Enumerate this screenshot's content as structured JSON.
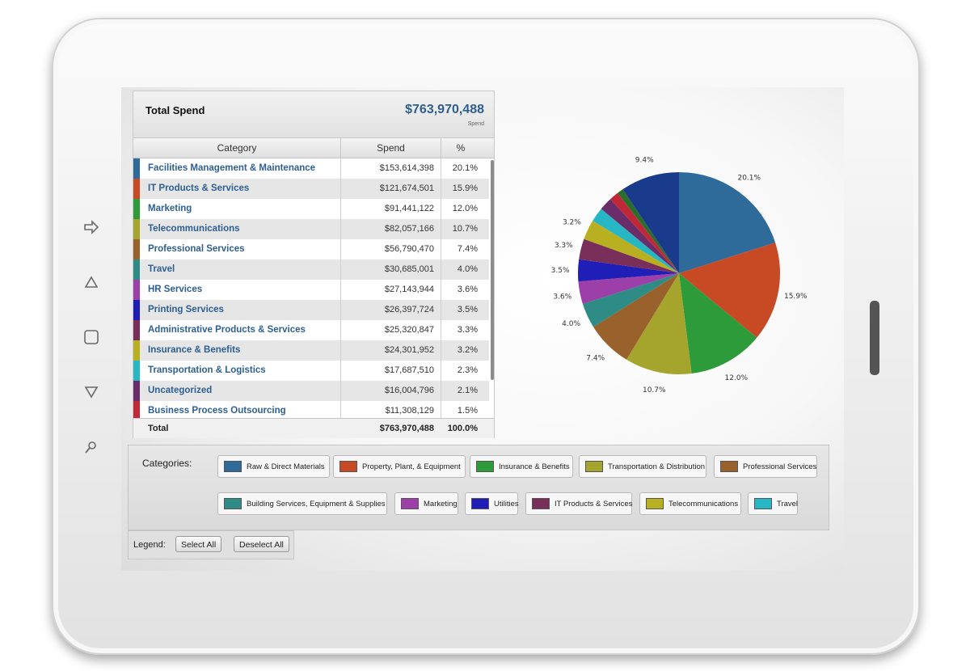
{
  "total_spend": {
    "title": "Total Spend",
    "value": "$763,970,488",
    "sub": "Spend"
  },
  "table": {
    "headers": [
      "Category",
      "Spend",
      "%"
    ],
    "rows": [
      {
        "category": "Facilities Management & Maintenance",
        "spend": "$153,614,398",
        "pct": "20.1%",
        "color": "#2e6b9b"
      },
      {
        "category": "IT Products & Services",
        "spend": "$121,674,501",
        "pct": "15.9%",
        "color": "#c84a24"
      },
      {
        "category": "Marketing",
        "spend": "$91,441,122",
        "pct": "12.0%",
        "color": "#2e9b3a"
      },
      {
        "category": "Telecommunications",
        "spend": "$82,057,166",
        "pct": "10.7%",
        "color": "#a5a52e"
      },
      {
        "category": "Professional Services",
        "spend": "$56,790,470",
        "pct": "7.4%",
        "color": "#99612c"
      },
      {
        "category": "Travel",
        "spend": "$30,685,001",
        "pct": "4.0%",
        "color": "#2e8b86"
      },
      {
        "category": "HR Services",
        "spend": "$27,143,944",
        "pct": "3.6%",
        "color": "#9c3fa8"
      },
      {
        "category": "Printing Services",
        "spend": "$26,397,724",
        "pct": "3.5%",
        "color": "#1f1fb8"
      },
      {
        "category": "Administrative Products & Services",
        "spend": "$25,320,847",
        "pct": "3.3%",
        "color": "#7a2f5a"
      },
      {
        "category": "Insurance & Benefits",
        "spend": "$24,301,952",
        "pct": "3.2%",
        "color": "#b8b021"
      },
      {
        "category": "Transportation & Logistics",
        "spend": "$17,687,510",
        "pct": "2.3%",
        "color": "#27b6c4"
      },
      {
        "category": "Uncategorized",
        "spend": "$16,004,796",
        "pct": "2.1%",
        "color": "#6a2d6a"
      },
      {
        "category": "Business Process Outsourcing",
        "spend": "$11,308,129",
        "pct": "1.5%",
        "color": "#c0283a"
      }
    ],
    "total": {
      "label": "Total",
      "spend": "$763,970,488",
      "pct": "100.0%"
    }
  },
  "chart_data": {
    "type": "pie",
    "slices": [
      {
        "label": "20.1%",
        "value": 20.1,
        "color": "#2e6b9b"
      },
      {
        "label": "15.9%",
        "value": 15.9,
        "color": "#c84a24"
      },
      {
        "label": "12.0%",
        "value": 12.0,
        "color": "#2e9b3a"
      },
      {
        "label": "10.7%",
        "value": 10.7,
        "color": "#a5a52e"
      },
      {
        "label": "7.4%",
        "value": 7.4,
        "color": "#99612c"
      },
      {
        "label": "4.0%",
        "value": 4.0,
        "color": "#2e8b86"
      },
      {
        "label": "3.6%",
        "value": 3.6,
        "color": "#9c3fa8"
      },
      {
        "label": "3.5%",
        "value": 3.5,
        "color": "#1f1fb8"
      },
      {
        "label": "3.3%",
        "value": 3.3,
        "color": "#7a2f5a"
      },
      {
        "label": "3.2%",
        "value": 3.2,
        "color": "#b8b021"
      },
      {
        "label": "",
        "value": 2.3,
        "color": "#27b6c4"
      },
      {
        "label": "",
        "value": 2.1,
        "color": "#6a2d6a"
      },
      {
        "label": "",
        "value": 1.5,
        "color": "#c0283a"
      },
      {
        "label": "",
        "value": 1.0,
        "color": "#2a6e2a"
      },
      {
        "label": "9.4%",
        "value": 9.4,
        "color": "#1a3a8c"
      }
    ]
  },
  "categories": {
    "label": "Categories:",
    "items": [
      {
        "label": "Raw & Direct Materials",
        "color": "#2e6b9b"
      },
      {
        "label": "Property, Plant, & Equipment",
        "color": "#c84a24"
      },
      {
        "label": "Insurance & Benefits",
        "color": "#2e9b3a"
      },
      {
        "label": "Transportation & Distribution",
        "color": "#a5a52e"
      },
      {
        "label": "Professional Services",
        "color": "#99612c"
      },
      {
        "label": "Building Services, Equipment & Supplies",
        "color": "#2e8b86"
      },
      {
        "label": "Marketing",
        "color": "#9c3fa8"
      },
      {
        "label": "Utilities",
        "color": "#1f1fb8"
      },
      {
        "label": "IT Products & Services",
        "color": "#7a2f5a"
      },
      {
        "label": "Telecommunications",
        "color": "#b8b021"
      },
      {
        "label": "Travel",
        "color": "#27b6c4"
      }
    ]
  },
  "legend": {
    "label": "Legend:",
    "select_all": "Select All",
    "deselect_all": "Deselect All"
  },
  "device": {
    "nav_icons": [
      "back-icon",
      "home-icon",
      "square-icon",
      "menu-down-icon",
      "search-icon"
    ]
  }
}
